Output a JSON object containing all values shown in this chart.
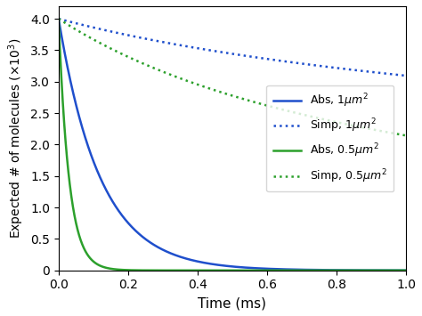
{
  "xlabel": "Time (ms)",
  "xlim": [
    0,
    1.0
  ],
  "ylim": [
    0,
    4.2
  ],
  "yticks": [
    0.0,
    0.5,
    1.0,
    1.5,
    2.0,
    2.5,
    3.0,
    3.5,
    4.0
  ],
  "ytick_labels": [
    "0",
    "0.5",
    "1.0",
    "1.5",
    "2.0",
    "2.5",
    "3.0",
    "3.5",
    "4.0"
  ],
  "xticks": [
    0.0,
    0.2,
    0.4,
    0.6,
    0.8,
    1.0
  ],
  "blue_solid_tau": 0.12,
  "green_solid_tau": 0.03,
  "blue_dotted_alpha": 0.37,
  "green_dotted_alpha": 0.9,
  "n_points": 2000,
  "t_max": 1.0,
  "init_value": 4000,
  "blue_color": "#1f4fcc",
  "green_color": "#2ca02c",
  "figsize": [
    4.74,
    3.55
  ],
  "dpi": 100,
  "legend_labels": [
    "Abs, 1$\\mu m^2$",
    "Simp, 1$\\mu m^2$",
    "Abs, 0.5$\\mu m^2$",
    "Simp, 0.5$\\mu m^2$"
  ]
}
